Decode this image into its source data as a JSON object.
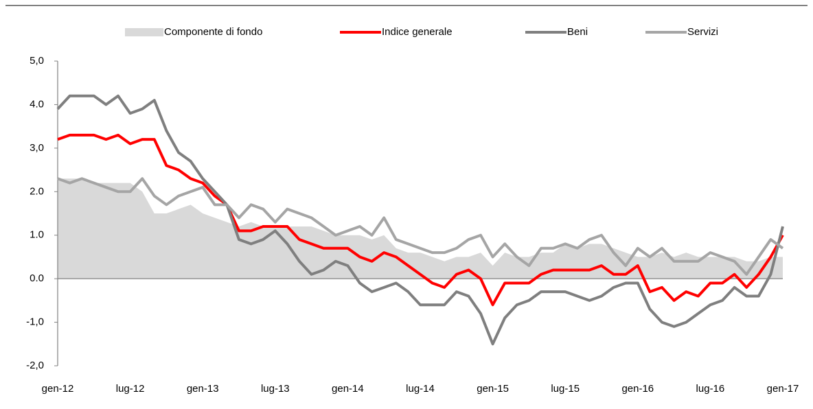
{
  "chart_data": {
    "type": "line",
    "categories": [
      "gen-12",
      null,
      null,
      null,
      null,
      null,
      "lug-12",
      null,
      null,
      null,
      null,
      null,
      "gen-13",
      null,
      null,
      null,
      null,
      null,
      "lug-13",
      null,
      null,
      null,
      null,
      null,
      "gen-14",
      null,
      null,
      null,
      null,
      null,
      "lug-14",
      null,
      null,
      null,
      null,
      null,
      "gen-15",
      null,
      null,
      null,
      null,
      null,
      "lug-15",
      null,
      null,
      null,
      null,
      null,
      "gen-16",
      null,
      null,
      null,
      null,
      null,
      "lug-16",
      null,
      null,
      null,
      null,
      null,
      "gen-17"
    ],
    "series": [
      {
        "name": "Componente di fondo",
        "type": "area",
        "color": "#d9d9d9",
        "values": [
          2.3,
          2.3,
          2.3,
          2.2,
          2.2,
          2.2,
          2.2,
          2.0,
          1.5,
          1.5,
          1.6,
          1.7,
          1.5,
          1.4,
          1.3,
          1.2,
          1.3,
          1.2,
          1.2,
          1.2,
          1.2,
          1.2,
          1.1,
          1.0,
          1.0,
          1.0,
          0.9,
          1.0,
          0.7,
          0.6,
          0.6,
          0.5,
          0.4,
          0.5,
          0.5,
          0.6,
          0.3,
          0.6,
          0.5,
          0.5,
          0.6,
          0.6,
          0.8,
          0.7,
          0.8,
          0.8,
          0.7,
          0.6,
          0.5,
          0.5,
          0.6,
          0.5,
          0.6,
          0.5,
          0.5,
          0.5,
          0.5,
          0.4,
          0.4,
          0.5,
          0.5
        ]
      },
      {
        "name": "Indice generale",
        "type": "line",
        "color": "#ff0000",
        "values": [
          3.2,
          3.3,
          3.3,
          3.3,
          3.2,
          3.3,
          3.1,
          3.2,
          3.2,
          2.6,
          2.5,
          2.3,
          2.2,
          1.9,
          1.7,
          1.1,
          1.1,
          1.2,
          1.2,
          1.2,
          0.9,
          0.8,
          0.7,
          0.7,
          0.7,
          0.5,
          0.4,
          0.6,
          0.5,
          0.3,
          0.1,
          -0.1,
          -0.2,
          0.1,
          0.2,
          0.0,
          -0.6,
          -0.1,
          -0.1,
          -0.1,
          0.1,
          0.2,
          0.2,
          0.2,
          0.2,
          0.3,
          0.1,
          0.1,
          0.3,
          -0.3,
          -0.2,
          -0.5,
          -0.3,
          -0.4,
          -0.1,
          -0.1,
          0.1,
          -0.2,
          0.1,
          0.5,
          1.0
        ]
      },
      {
        "name": "Beni",
        "type": "line",
        "color": "#7f7f7f",
        "values": [
          3.9,
          4.2,
          4.2,
          4.2,
          4.0,
          4.2,
          3.8,
          3.9,
          4.1,
          3.4,
          2.9,
          2.7,
          2.3,
          2.0,
          1.7,
          0.9,
          0.8,
          0.9,
          1.1,
          0.8,
          0.4,
          0.1,
          0.2,
          0.4,
          0.3,
          -0.1,
          -0.3,
          -0.2,
          -0.1,
          -0.3,
          -0.6,
          -0.6,
          -0.6,
          -0.3,
          -0.4,
          -0.8,
          -1.5,
          -0.9,
          -0.6,
          -0.5,
          -0.3,
          -0.3,
          -0.3,
          -0.4,
          -0.5,
          -0.4,
          -0.2,
          -0.1,
          -0.1,
          -0.7,
          -1.0,
          -1.1,
          -1.0,
          -0.8,
          -0.6,
          -0.5,
          -0.2,
          -0.4,
          -0.4,
          0.1,
          1.2
        ]
      },
      {
        "name": "Servizi",
        "type": "line",
        "color": "#a5a5a5",
        "values": [
          2.3,
          2.2,
          2.3,
          2.2,
          2.1,
          2.0,
          2.0,
          2.3,
          1.9,
          1.7,
          1.9,
          2.0,
          2.1,
          1.7,
          1.7,
          1.4,
          1.7,
          1.6,
          1.3,
          1.6,
          1.5,
          1.4,
          1.2,
          1.0,
          1.1,
          1.2,
          1.0,
          1.4,
          0.9,
          0.8,
          0.7,
          0.6,
          0.6,
          0.7,
          0.9,
          1.0,
          0.5,
          0.8,
          0.5,
          0.3,
          0.7,
          0.7,
          0.8,
          0.7,
          0.9,
          1.0,
          0.6,
          0.3,
          0.7,
          0.5,
          0.7,
          0.4,
          0.4,
          0.4,
          0.6,
          0.5,
          0.4,
          0.1,
          0.5,
          0.9,
          0.7
        ]
      }
    ],
    "ylim": [
      -2,
      5
    ],
    "yticks": [
      {
        "value": 5,
        "label": "5,0"
      },
      {
        "value": 4,
        "label": "4.0"
      },
      {
        "value": 3,
        "label": "3,0"
      },
      {
        "value": 2,
        "label": "2.0"
      },
      {
        "value": 1,
        "label": "1.0"
      },
      {
        "value": 0,
        "label": "0.0"
      },
      {
        "value": -1,
        "label": "-1,0"
      },
      {
        "value": -2,
        "label": "-2,0"
      }
    ],
    "legend": "top"
  }
}
